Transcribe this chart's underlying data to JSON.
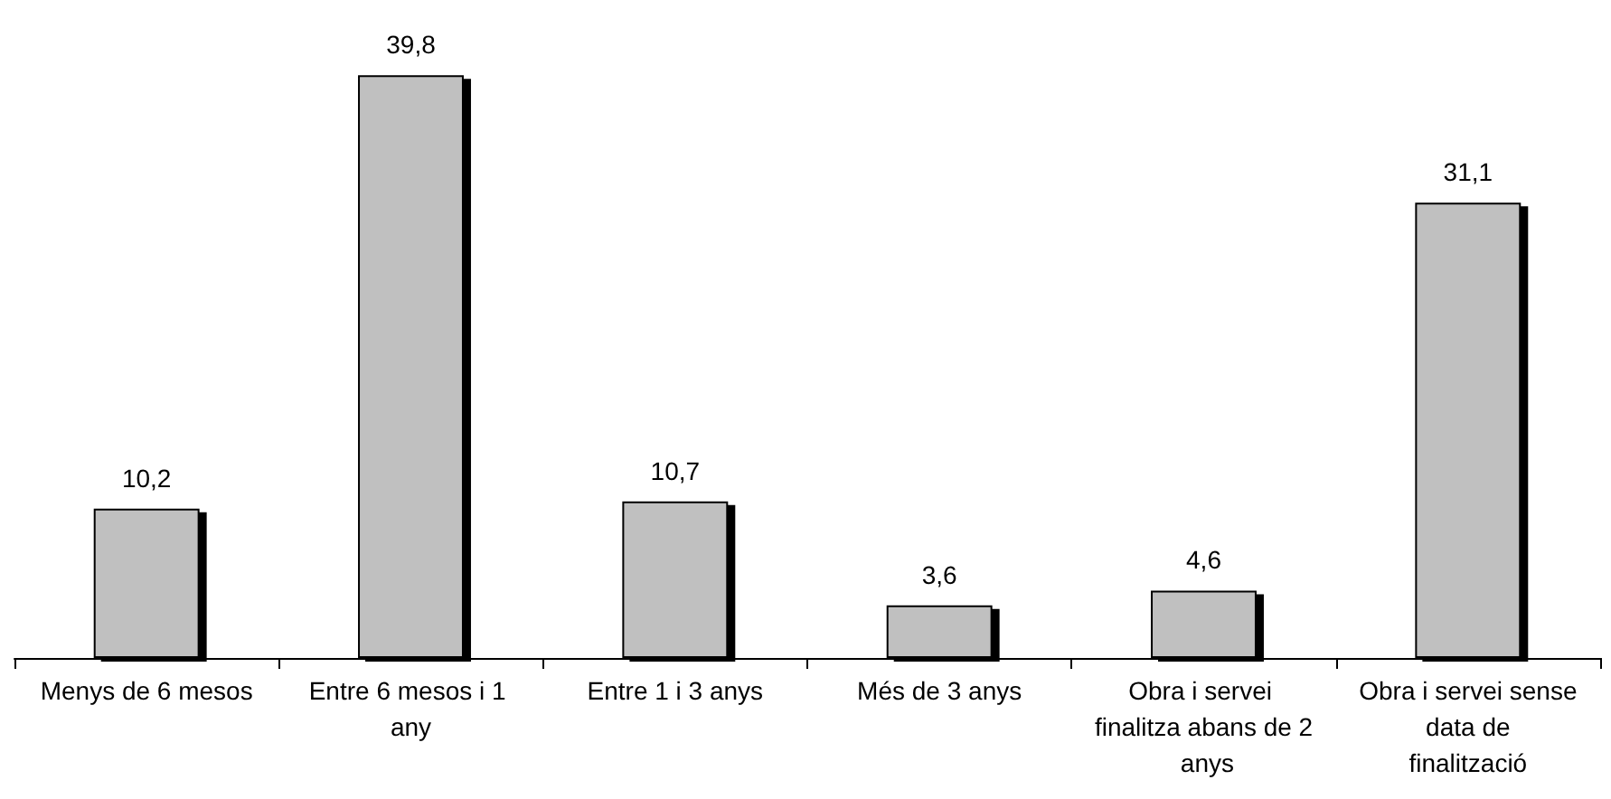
{
  "chart_data": {
    "type": "bar",
    "categories": [
      "Menys de 6 mesos",
      "Entre 6 mesos i 1 any",
      "Entre 1 i 3 anys",
      "Més de 3 anys",
      "Obra i servei finalitza abans de 2 anys",
      "Obra i servei sense data de finalització"
    ],
    "values": [
      10.2,
      39.8,
      10.7,
      3.6,
      4.6,
      31.1
    ],
    "value_labels": [
      "10,2",
      "39,8",
      "10,7",
      "3,6",
      "4,6",
      "31,1"
    ],
    "color": "#c0c0c0"
  }
}
